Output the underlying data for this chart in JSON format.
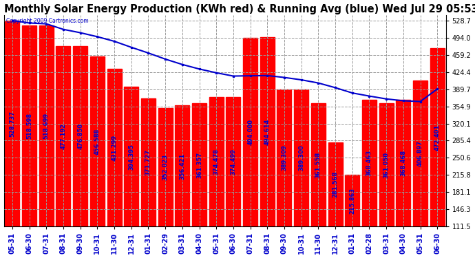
{
  "title": "Monthly Solar Energy Production (KWh red) & Running Avg (blue) Wed Jul 29 05:53",
  "copyright": "Copyright 2009 Cartronics.com",
  "categories": [
    "05-31",
    "06-30",
    "07-31",
    "08-31",
    "09-30",
    "10-31",
    "11-30",
    "12-31",
    "01-31",
    "02-29",
    "03-31",
    "04-30",
    "05-31",
    "06-30",
    "07-31",
    "08-31",
    "09-30",
    "10-31",
    "11-30",
    "12-31",
    "01-31",
    "02-28",
    "03-31",
    "04-30",
    "05-31",
    "06-30"
  ],
  "values": [
    528.737,
    518.598,
    518.699,
    477.192,
    476.85,
    456.588,
    431.299,
    394.395,
    371.727,
    352.023,
    356.421,
    361.357,
    374.478,
    374.499,
    494.0,
    494.614,
    389.309,
    389.3,
    361.558,
    281.568,
    215.863,
    368.463,
    361.05,
    368.468,
    406.897,
    472.401
  ],
  "running_avg": [
    528.737,
    523.668,
    522.011,
    510.807,
    504.015,
    495.944,
    486.638,
    474.485,
    462.958,
    450.563,
    439.68,
    430.538,
    422.892,
    416.249,
    416.812,
    417.238,
    413.424,
    408.636,
    402.248,
    392.734,
    382.022,
    375.736,
    369.973,
    366.196,
    364.724,
    390.0
  ],
  "bar_color": "#ff0000",
  "line_color": "#0000cc",
  "background_color": "#ffffff",
  "grid_color": "#999999",
  "text_color": "#0000cc",
  "ylim_min": 111.5,
  "ylim_max": 540.0,
  "yticks": [
    111.5,
    146.3,
    181.1,
    215.8,
    250.6,
    285.4,
    320.1,
    354.9,
    389.7,
    424.4,
    459.2,
    494.0,
    528.7
  ],
  "title_fontsize": 10.5,
  "label_fontsize": 6.0,
  "tick_fontsize": 7.0
}
